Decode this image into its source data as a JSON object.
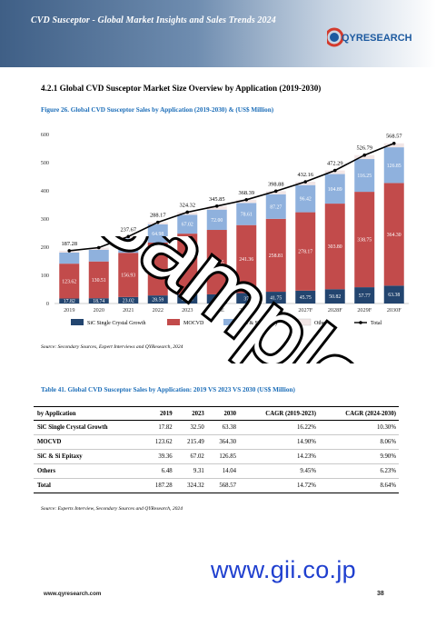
{
  "header": {
    "title": "CVD Susceptor - Global Market Insights and Sales Trends 2024",
    "logo_text": "QYRESEARCH"
  },
  "section": {
    "title": "4.2.1  Global CVD Susceptor Market Size Overview by Application (2019-2030)"
  },
  "figure": {
    "caption": "Figure 26.   Global CVD Susceptor Sales by Application (2019-2030) & (US$ Million)",
    "source": "Source: Secondary Sources, Expert Interviews and QYResearch, 2024"
  },
  "chart_data": {
    "type": "bar",
    "stacked": true,
    "categories": [
      "2019",
      "2020",
      "2021",
      "2022",
      "2023",
      "2024E",
      "2025F",
      "2026F",
      "2027F",
      "2028F",
      "2029F",
      "2030F"
    ],
    "series": [
      {
        "name": "SiC Single Crystal Growth",
        "color": "#23456f",
        "values": [
          17.82,
          18.74,
          23.02,
          28.59,
          32.5,
          32.4,
          37.0,
          41.75,
          45.75,
          50.82,
          57.77,
          63.38
        ],
        "labels": [
          "17.82",
          "18.74",
          "23.02",
          "28.59",
          "32.50",
          "",
          "37",
          "41.75",
          "45.75",
          "50.82",
          "57.77",
          "63.38"
        ]
      },
      {
        "name": "MOCVD",
        "color": "#c24b4b",
        "values": [
          123.62,
          130.51,
          156.93,
          187.5,
          215.49,
          228.85,
          241.36,
          258.81,
          278.17,
          303.8,
          338.75,
          364.3
        ],
        "labels": [
          "123.62",
          "130.51",
          "156.93",
          "",
          "",
          "228.85",
          "241.36",
          "258.81",
          "278.17",
          "303.80",
          "338.75",
          "364.30"
        ]
      },
      {
        "name": "SiC & Si Epitaxy",
        "color": "#8fb1dd",
        "values": [
          39.36,
          41.6,
          50.82,
          64.98,
          67.02,
          72.0,
          78.61,
          87.27,
          96.42,
          104.89,
          116.25,
          126.85
        ],
        "labels": [
          "",
          "",
          "50.82",
          "64.98",
          "67.02",
          "72.00",
          "78.61",
          "87.27",
          "96.42",
          "104.89",
          "116.25",
          "126.85"
        ]
      },
      {
        "name": "Others",
        "color": "#f2e6e6",
        "values": [
          6.48,
          7.5,
          6.9,
          7.1,
          9.31,
          12.6,
          11.42,
          11.05,
          11.81,
          12.78,
          14.02,
          14.04
        ],
        "labels": [
          "",
          "",
          "",
          "",
          "",
          "",
          "",
          "",
          "",
          "",
          "",
          ""
        ]
      },
      {
        "name": "Total",
        "color": "#000000",
        "values": [
          187.28,
          198.35,
          237.67,
          288.17,
          324.32,
          345.85,
          368.39,
          398.88,
          432.16,
          472.29,
          526.79,
          568.57
        ],
        "labels": [
          "187.28",
          "",
          "237.67",
          "288.17",
          "324.32",
          "345.85",
          "368.39",
          "398.88",
          "432.16",
          "472.29",
          "526.79",
          "568.57"
        ]
      }
    ],
    "ylim": [
      0,
      600
    ],
    "yticks": [
      "0",
      "100",
      "200",
      "300",
      "400",
      "500",
      "600"
    ],
    "legend_position": "bottom",
    "grid": false
  },
  "table": {
    "caption": "Table 41.   Global CVD Susceptor Sales by Application: 2019 VS 2023 VS 2030 (US$ Million)",
    "headers": [
      "by Application",
      "2019",
      "2023",
      "2030",
      "CAGR (2019-2023)",
      "CAGR (2024-2030)"
    ],
    "rows": [
      [
        "SiC Single Crystal Growth",
        "17.82",
        "32.50",
        "63.38",
        "16.22%",
        "10.30%"
      ],
      [
        "MOCVD",
        "123.62",
        "215.49",
        "364.30",
        "14.90%",
        "8.06%"
      ],
      [
        "SiC & Si Epitaxy",
        "39.36",
        "67.02",
        "126.85",
        "14.23%",
        "9.90%"
      ],
      [
        "Others",
        "6.48",
        "9.31",
        "14.04",
        "9.45%",
        "6.23%"
      ]
    ],
    "total": [
      "Total",
      "187.28",
      "324.32",
      "568.57",
      "14.72%",
      "8.64%"
    ],
    "source": "Source: Experts Interview, Secondary Sources and QYResearch, 2024"
  },
  "watermark": "Sample",
  "gii_mark": "www.gii.co.jp",
  "footer": {
    "url": "www.qyresearch.com",
    "page": "38"
  }
}
